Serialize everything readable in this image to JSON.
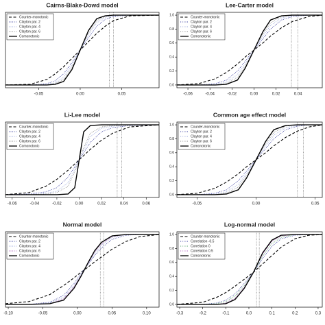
{
  "chart_data": [
    {
      "type": "line",
      "title": "Cairns-Blake-Dowd model",
      "xlim": [
        -0.09,
        0.095
      ],
      "ylim": [
        -0.04,
        1.04
      ],
      "xticks": [
        {
          "value": -0.05,
          "label": "-0.05"
        },
        {
          "value": 0,
          "label": "0.00"
        },
        {
          "value": 0.05,
          "label": "0.05"
        }
      ],
      "vlines": [
        0.035,
        0.04
      ],
      "x": [
        -0.09,
        -0.06,
        -0.04,
        -0.03,
        -0.02,
        -0.01,
        0,
        0.01,
        0.02,
        0.03,
        0.04,
        0.06,
        0.095
      ],
      "series": [
        {
          "name": "Counter-monotonic",
          "color": "#000000",
          "dash": "dashed",
          "values": [
            0,
            0.01,
            0.08,
            0.16,
            0.26,
            0.38,
            0.5,
            0.62,
            0.74,
            0.84,
            0.92,
            0.99,
            1
          ]
        },
        {
          "name": "Clayton par. 2",
          "color": "#3b3fa0",
          "dash": "dotted",
          "values": [
            0,
            0,
            0.02,
            0.06,
            0.16,
            0.32,
            0.5,
            0.68,
            0.84,
            0.94,
            0.98,
            1,
            1
          ]
        },
        {
          "name": "Clayton par. 4",
          "color": "#9aa8dc",
          "dash": "dotted",
          "values": [
            0,
            0,
            0.01,
            0.03,
            0.11,
            0.28,
            0.5,
            0.72,
            0.89,
            0.97,
            0.99,
            1,
            1
          ]
        },
        {
          "name": "Clayton par. 6",
          "color": "#8a8a8a",
          "dash": "dotted",
          "values": [
            0,
            0,
            0,
            0.02,
            0.08,
            0.25,
            0.5,
            0.75,
            0.92,
            0.98,
            1,
            1,
            1
          ]
        },
        {
          "name": "Comonotonic",
          "color": "#000000",
          "dash": "solid",
          "values": [
            0,
            0,
            0,
            0.01,
            0.05,
            0.22,
            0.5,
            0.78,
            0.95,
            0.99,
            1,
            1,
            1
          ]
        }
      ]
    },
    {
      "type": "line",
      "title": "Lee-Carter model",
      "xlim": [
        -0.07,
        0.062
      ],
      "ylim": [
        -0.04,
        1.04
      ],
      "xticks": [
        {
          "value": -0.06,
          "label": "-0.06"
        },
        {
          "value": -0.04,
          "label": "-0.04"
        },
        {
          "value": -0.02,
          "label": "-0.02"
        },
        {
          "value": 0,
          "label": "0.00"
        },
        {
          "value": 0.02,
          "label": "0.02"
        },
        {
          "value": 0.04,
          "label": "0.04"
        }
      ],
      "yticks": [
        {
          "value": 0,
          "label": "0.0"
        },
        0.2,
        0.4,
        0.6,
        0.8,
        {
          "value": 1,
          "label": "1.0"
        }
      ],
      "vlines": [
        0.034,
        0.04
      ],
      "x": [
        -0.07,
        -0.05,
        -0.035,
        -0.025,
        -0.015,
        -0.008,
        0,
        0.008,
        0.015,
        0.025,
        0.035,
        0.05,
        0.062
      ],
      "series": [
        {
          "name": "Counter-monotonic",
          "color": "#000000",
          "dash": "dashed",
          "values": [
            0,
            0.02,
            0.09,
            0.18,
            0.3,
            0.4,
            0.5,
            0.6,
            0.7,
            0.82,
            0.91,
            0.98,
            1
          ]
        },
        {
          "name": "Clayton par. 2",
          "color": "#3b3fa0",
          "dash": "dotted",
          "values": [
            0,
            0,
            0.02,
            0.07,
            0.2,
            0.34,
            0.5,
            0.66,
            0.8,
            0.93,
            0.98,
            1,
            1
          ]
        },
        {
          "name": "Clayton par. 4",
          "color": "#9aa8dc",
          "dash": "dotted",
          "values": [
            0,
            0,
            0.01,
            0.04,
            0.15,
            0.3,
            0.5,
            0.7,
            0.85,
            0.96,
            0.99,
            1,
            1
          ]
        },
        {
          "name": "Clayton par. 6",
          "color": "#8a8a8a",
          "dash": "dotted",
          "values": [
            0,
            0,
            0,
            0.02,
            0.11,
            0.27,
            0.5,
            0.73,
            0.89,
            0.98,
            1,
            1,
            1
          ]
        },
        {
          "name": "Comonotonic",
          "color": "#000000",
          "dash": "solid",
          "values": [
            0,
            0,
            0,
            0.01,
            0.07,
            0.24,
            0.5,
            0.76,
            0.93,
            0.99,
            1,
            1,
            1
          ]
        }
      ]
    },
    {
      "type": "line",
      "title": "Li-Lee model",
      "xlim": [
        -0.066,
        0.0715
      ],
      "ylim": [
        -0.04,
        1.04
      ],
      "xticks": [
        {
          "value": -0.06,
          "label": "-0.06"
        },
        {
          "value": -0.04,
          "label": "-0.04"
        },
        {
          "value": -0.02,
          "label": "-0.02"
        },
        {
          "value": 0,
          "label": "0.00"
        },
        {
          "value": 0.02,
          "label": "0.02"
        },
        {
          "value": 0.04,
          "label": "0.04"
        },
        {
          "value": 0.06,
          "label": "0.06"
        }
      ],
      "vlines": [
        0.034,
        0.038
      ],
      "x": [
        -0.066,
        -0.045,
        -0.03,
        -0.02,
        -0.01,
        -0.004,
        0,
        0.004,
        0.01,
        0.02,
        0.03,
        0.045,
        0.0715
      ],
      "series": [
        {
          "name": "Counter-monotonic",
          "color": "#000000",
          "dash": "dashed",
          "values": [
            0,
            0.03,
            0.12,
            0.22,
            0.35,
            0.44,
            0.5,
            0.56,
            0.65,
            0.78,
            0.88,
            0.97,
            1
          ]
        },
        {
          "name": "Clayton par. 2",
          "color": "#3b3fa0",
          "dash": "dotted",
          "values": [
            0,
            0.01,
            0.04,
            0.1,
            0.25,
            0.4,
            0.5,
            0.6,
            0.75,
            0.9,
            0.96,
            0.99,
            1
          ]
        },
        {
          "name": "Clayton par. 4",
          "color": "#9aa8dc",
          "dash": "dotted",
          "values": [
            0,
            0,
            0.02,
            0.05,
            0.17,
            0.36,
            0.5,
            0.64,
            0.83,
            0.95,
            0.98,
            1,
            1
          ]
        },
        {
          "name": "Clayton par. 6",
          "color": "#8a8a8a",
          "dash": "dotted",
          "values": [
            0,
            0,
            0.01,
            0.03,
            0.12,
            0.33,
            0.5,
            0.67,
            0.88,
            0.97,
            0.99,
            1,
            1
          ]
        },
        {
          "name": "Comonotonic",
          "color": "#000000",
          "dash": "solid",
          "values": [
            0,
            0,
            0,
            0,
            0.01,
            0.1,
            0.5,
            0.9,
            0.99,
            1,
            1,
            1,
            1
          ]
        }
      ]
    },
    {
      "type": "line",
      "title": "Common age effect model",
      "xlim": [
        -0.067,
        0.056
      ],
      "ylim": [
        -0.04,
        1.04
      ],
      "xticks": [
        {
          "value": -0.05,
          "label": "-0.05"
        },
        {
          "value": 0,
          "label": "0.00"
        },
        {
          "value": 0.05,
          "label": "0.05"
        }
      ],
      "yticks": [
        {
          "value": 0,
          "label": "0.0"
        },
        0.2,
        0.4,
        0.6,
        0.8,
        {
          "value": 1,
          "label": "1.0"
        }
      ],
      "vlines": [
        0.035,
        0.04
      ],
      "x": [
        -0.067,
        -0.05,
        -0.035,
        -0.025,
        -0.015,
        -0.008,
        0,
        0.008,
        0.015,
        0.025,
        0.035,
        0.045,
        0.056
      ],
      "series": [
        {
          "name": "Counter-monotonic",
          "color": "#000000",
          "dash": "dashed",
          "values": [
            0,
            0.02,
            0.09,
            0.18,
            0.3,
            0.4,
            0.5,
            0.6,
            0.7,
            0.82,
            0.91,
            0.97,
            1
          ]
        },
        {
          "name": "Clayton par. 2",
          "color": "#3b3fa0",
          "dash": "dotted",
          "values": [
            0,
            0,
            0.02,
            0.07,
            0.2,
            0.34,
            0.5,
            0.66,
            0.8,
            0.93,
            0.98,
            1,
            1
          ]
        },
        {
          "name": "Clayton par. 4",
          "color": "#9aa8dc",
          "dash": "dotted",
          "values": [
            0,
            0,
            0.01,
            0.04,
            0.15,
            0.3,
            0.5,
            0.7,
            0.85,
            0.96,
            0.99,
            1,
            1
          ]
        },
        {
          "name": "Clayton par. 6",
          "color": "#8a8a8a",
          "dash": "dotted",
          "values": [
            0,
            0,
            0,
            0.02,
            0.11,
            0.27,
            0.5,
            0.73,
            0.89,
            0.98,
            1,
            1,
            1
          ]
        },
        {
          "name": "Comonotonic",
          "color": "#000000",
          "dash": "solid",
          "values": [
            0,
            0,
            0,
            0.01,
            0.07,
            0.24,
            0.5,
            0.76,
            0.93,
            0.99,
            1,
            1,
            1
          ]
        }
      ]
    },
    {
      "type": "line",
      "title": "Normal model",
      "xlim": [
        -0.104,
        0.118
      ],
      "ylim": [
        -0.04,
        1.04
      ],
      "xticks": [
        {
          "value": -0.1,
          "label": "-0.10"
        },
        {
          "value": -0.05,
          "label": "-0.05"
        },
        {
          "value": 0,
          "label": "0.00"
        },
        {
          "value": 0.05,
          "label": "0.05"
        },
        {
          "value": 0.1,
          "label": "0.10"
        }
      ],
      "vlines": [
        0.033,
        0.038
      ],
      "x": [
        -0.104,
        -0.07,
        -0.04,
        -0.02,
        -0.005,
        0.005,
        0.015,
        0.025,
        0.035,
        0.05,
        0.07,
        0.09,
        0.118
      ],
      "series": [
        {
          "name": "Counter-monotonic",
          "color": "#000000",
          "dash": "dashed",
          "values": [
            0.01,
            0.04,
            0.14,
            0.27,
            0.38,
            0.46,
            0.53,
            0.61,
            0.68,
            0.79,
            0.9,
            0.97,
            1
          ]
        },
        {
          "name": "Clayton par. 2",
          "color": "#3b3fa0",
          "dash": "dotted",
          "values": [
            0,
            0,
            0.03,
            0.13,
            0.3,
            0.44,
            0.57,
            0.7,
            0.81,
            0.93,
            0.99,
            1,
            1
          ]
        },
        {
          "name": "Clayton par. 4",
          "color": "#9aa8dc",
          "dash": "dotted",
          "values": [
            0,
            0,
            0.02,
            0.1,
            0.27,
            0.42,
            0.58,
            0.73,
            0.85,
            0.96,
            1,
            1,
            1
          ]
        },
        {
          "name": "Clayton par. 6",
          "color": "#b060c0",
          "dash": "dotted",
          "values": [
            0,
            0,
            0.01,
            0.08,
            0.25,
            0.41,
            0.58,
            0.75,
            0.87,
            0.97,
            1,
            1,
            1
          ]
        },
        {
          "name": "Comonotonic",
          "color": "#000000",
          "dash": "solid",
          "values": [
            0,
            0,
            0.01,
            0.06,
            0.23,
            0.4,
            0.59,
            0.77,
            0.89,
            0.98,
            1,
            1,
            1
          ]
        }
      ]
    },
    {
      "type": "line",
      "title": "Log-normal model",
      "xlim": [
        -0.312,
        0.318
      ],
      "ylim": [
        -0.04,
        1.04
      ],
      "xticks": [
        {
          "value": -0.3,
          "label": "-0.3"
        },
        -0.2,
        -0.1,
        {
          "value": 0,
          "label": "0.0"
        },
        0.1,
        0.2,
        0.3
      ],
      "yticks": [
        {
          "value": 0,
          "label": "0.0"
        },
        0.2,
        0.4,
        0.6,
        0.8,
        {
          "value": 1,
          "label": "1.0"
        }
      ],
      "vlines": [
        0.033,
        0.045
      ],
      "x": [
        -0.312,
        -0.2,
        -0.14,
        -0.1,
        -0.06,
        -0.02,
        0.02,
        0.06,
        0.1,
        0.14,
        0.2,
        0.26,
        0.318
      ],
      "series": [
        {
          "name": "Counter-monotonic",
          "color": "#000000",
          "dash": "dashed",
          "values": [
            0,
            0.03,
            0.1,
            0.17,
            0.26,
            0.36,
            0.46,
            0.58,
            0.7,
            0.82,
            0.94,
            0.99,
            1
          ]
        },
        {
          "name": "Correlation -0.5",
          "color": "#3b3fa0",
          "dash": "dotted",
          "values": [
            0,
            0,
            0.02,
            0.06,
            0.15,
            0.3,
            0.46,
            0.66,
            0.83,
            0.94,
            0.99,
            1,
            1
          ]
        },
        {
          "name": "Correlation 0",
          "color": "#5aa870",
          "dash": "dotted",
          "values": [
            0,
            0,
            0.01,
            0.04,
            0.12,
            0.27,
            0.46,
            0.69,
            0.87,
            0.96,
            1,
            1,
            1
          ]
        },
        {
          "name": "Correlation 0.5",
          "color": "#b060c0",
          "dash": "dotted",
          "values": [
            0,
            0,
            0,
            0.02,
            0.09,
            0.25,
            0.46,
            0.72,
            0.9,
            0.98,
            1,
            1,
            1
          ]
        },
        {
          "name": "Comonotonic",
          "color": "#000000",
          "dash": "solid",
          "values": [
            0,
            0,
            0,
            0.01,
            0.07,
            0.23,
            0.46,
            0.74,
            0.92,
            0.99,
            1,
            1,
            1
          ]
        }
      ]
    }
  ]
}
